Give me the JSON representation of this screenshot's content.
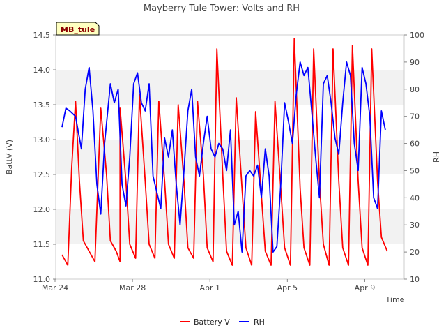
{
  "chart_data": {
    "type": "line",
    "title": "Mayberry Tule Tower: Volts and RH",
    "station_label": "MB_tule",
    "xlabel": "Time",
    "ylabel_left": "BattV (V)",
    "ylabel_right": "RH",
    "x_range": [
      "Mar 24",
      "Apr 11"
    ],
    "x_ticks": [
      "Mar 24",
      "Mar 28",
      "Apr 1",
      "Apr 5",
      "Apr 9"
    ],
    "ylim_left": [
      11.0,
      14.5
    ],
    "yticks_left": [
      "11.0",
      "11.5",
      "12.0",
      "12.5",
      "13.0",
      "13.5",
      "14.0",
      "14.5"
    ],
    "ylim_right": [
      10,
      100
    ],
    "yticks_right": [
      "10",
      "20",
      "30",
      "40",
      "50",
      "60",
      "70",
      "80",
      "90",
      "100"
    ],
    "grid": "horizontal bands",
    "legend_position": "bottom",
    "series": [
      {
        "name": "Battery V",
        "color": "#ff0000",
        "axis": "left",
        "points": [
          [
            0.0,
            11.35
          ],
          [
            0.3,
            11.2
          ],
          [
            0.5,
            12.6
          ],
          [
            0.7,
            13.55
          ],
          [
            0.9,
            12.4
          ],
          [
            1.1,
            11.55
          ],
          [
            1.4,
            11.4
          ],
          [
            1.7,
            11.25
          ],
          [
            2.0,
            13.45
          ],
          [
            2.3,
            12.5
          ],
          [
            2.5,
            11.55
          ],
          [
            2.8,
            11.4
          ],
          [
            3.0,
            11.25
          ],
          [
            3.0,
            13.45
          ],
          [
            3.3,
            12.4
          ],
          [
            3.5,
            11.5
          ],
          [
            3.8,
            11.3
          ],
          [
            4.0,
            13.65
          ],
          [
            4.3,
            12.4
          ],
          [
            4.5,
            11.5
          ],
          [
            4.8,
            11.3
          ],
          [
            5.0,
            13.55
          ],
          [
            5.3,
            12.4
          ],
          [
            5.5,
            11.5
          ],
          [
            5.8,
            11.3
          ],
          [
            6.0,
            13.5
          ],
          [
            6.3,
            12.4
          ],
          [
            6.5,
            11.45
          ],
          [
            6.8,
            11.3
          ],
          [
            7.0,
            13.55
          ],
          [
            7.3,
            12.5
          ],
          [
            7.5,
            11.45
          ],
          [
            7.8,
            11.25
          ],
          [
            8.0,
            14.3
          ],
          [
            8.3,
            12.5
          ],
          [
            8.5,
            11.4
          ],
          [
            8.8,
            11.2
          ],
          [
            9.0,
            13.6
          ],
          [
            9.3,
            12.3
          ],
          [
            9.5,
            11.45
          ],
          [
            9.8,
            11.2
          ],
          [
            10.0,
            13.4
          ],
          [
            10.3,
            12.2
          ],
          [
            10.5,
            11.4
          ],
          [
            10.8,
            11.2
          ],
          [
            11.0,
            13.55
          ],
          [
            11.3,
            12.3
          ],
          [
            11.5,
            11.45
          ],
          [
            11.8,
            11.2
          ],
          [
            12.0,
            14.45
          ],
          [
            12.3,
            12.3
          ],
          [
            12.5,
            11.45
          ],
          [
            12.8,
            11.2
          ],
          [
            13.0,
            14.3
          ],
          [
            13.3,
            12.4
          ],
          [
            13.5,
            11.5
          ],
          [
            13.8,
            11.2
          ],
          [
            14.0,
            14.3
          ],
          [
            14.3,
            12.4
          ],
          [
            14.5,
            11.45
          ],
          [
            14.8,
            11.2
          ],
          [
            15.0,
            14.35
          ],
          [
            15.3,
            12.4
          ],
          [
            15.5,
            11.45
          ],
          [
            15.8,
            11.2
          ],
          [
            16.0,
            14.3
          ],
          [
            16.3,
            12.4
          ],
          [
            16.5,
            11.6
          ],
          [
            16.8,
            11.4
          ]
        ]
      },
      {
        "name": "RH",
        "color": "#0000ff",
        "axis": "right",
        "points": [
          [
            0.0,
            66
          ],
          [
            0.2,
            73
          ],
          [
            0.4,
            72
          ],
          [
            0.7,
            70
          ],
          [
            1.0,
            58
          ],
          [
            1.2,
            80
          ],
          [
            1.4,
            88
          ],
          [
            1.6,
            72
          ],
          [
            1.8,
            45
          ],
          [
            2.0,
            34
          ],
          [
            2.2,
            60
          ],
          [
            2.5,
            82
          ],
          [
            2.7,
            75
          ],
          [
            2.9,
            80
          ],
          [
            3.1,
            45
          ],
          [
            3.3,
            37
          ],
          [
            3.5,
            55
          ],
          [
            3.7,
            82
          ],
          [
            3.9,
            86
          ],
          [
            4.1,
            75
          ],
          [
            4.3,
            72
          ],
          [
            4.5,
            82
          ],
          [
            4.7,
            48
          ],
          [
            4.9,
            42
          ],
          [
            5.1,
            36
          ],
          [
            5.3,
            62
          ],
          [
            5.5,
            55
          ],
          [
            5.7,
            65
          ],
          [
            5.9,
            45
          ],
          [
            6.1,
            30
          ],
          [
            6.3,
            50
          ],
          [
            6.5,
            72
          ],
          [
            6.7,
            80
          ],
          [
            6.9,
            55
          ],
          [
            7.1,
            48
          ],
          [
            7.3,
            60
          ],
          [
            7.5,
            70
          ],
          [
            7.7,
            58
          ],
          [
            7.9,
            55
          ],
          [
            8.1,
            60
          ],
          [
            8.3,
            58
          ],
          [
            8.5,
            50
          ],
          [
            8.7,
            65
          ],
          [
            8.9,
            30
          ],
          [
            9.1,
            35
          ],
          [
            9.3,
            20
          ],
          [
            9.5,
            48
          ],
          [
            9.7,
            50
          ],
          [
            9.9,
            48
          ],
          [
            10.1,
            52
          ],
          [
            10.3,
            40
          ],
          [
            10.5,
            58
          ],
          [
            10.7,
            48
          ],
          [
            10.9,
            20
          ],
          [
            11.1,
            22
          ],
          [
            11.3,
            45
          ],
          [
            11.5,
            75
          ],
          [
            11.7,
            68
          ],
          [
            11.9,
            60
          ],
          [
            12.1,
            78
          ],
          [
            12.3,
            90
          ],
          [
            12.5,
            85
          ],
          [
            12.7,
            88
          ],
          [
            12.9,
            72
          ],
          [
            13.1,
            55
          ],
          [
            13.3,
            40
          ],
          [
            13.5,
            82
          ],
          [
            13.7,
            85
          ],
          [
            13.9,
            75
          ],
          [
            14.1,
            62
          ],
          [
            14.3,
            56
          ],
          [
            14.5,
            75
          ],
          [
            14.7,
            90
          ],
          [
            14.9,
            85
          ],
          [
            15.1,
            60
          ],
          [
            15.3,
            50
          ],
          [
            15.5,
            88
          ],
          [
            15.7,
            82
          ],
          [
            15.9,
            70
          ],
          [
            16.1,
            40
          ],
          [
            16.3,
            36
          ],
          [
            16.5,
            72
          ],
          [
            16.7,
            65
          ]
        ]
      }
    ]
  }
}
